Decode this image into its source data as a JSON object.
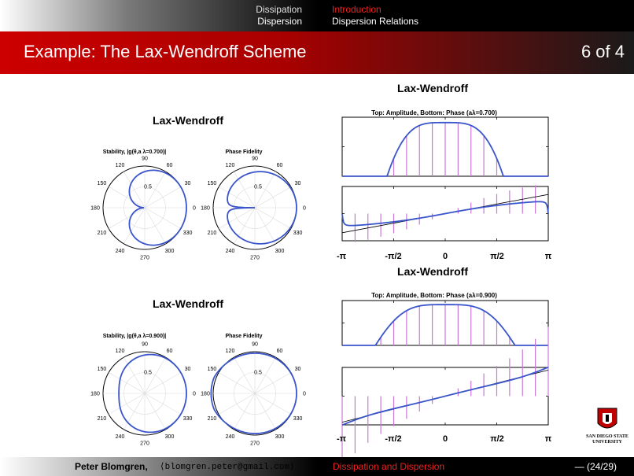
{
  "nav": {
    "section1": "Dissipation",
    "subsection1": "Dispersion",
    "section2": "Introduction",
    "subsection2": "Dispersion Relations"
  },
  "header": {
    "title": "Example: The Lax-Wendroff Scheme",
    "page": "6 of 4"
  },
  "figures": {
    "polar_title_1": "Lax-Wendroff",
    "polar_title_2": "Lax-Wendroff",
    "stability_1": "Stability, |g(θ,a λ=0.700)|",
    "stability_2": "Stability, |g(θ,a λ=0.900)|",
    "phase_label": "Phase Fidelity",
    "polar_ticks": {
      "r05": "0.5",
      "a0": "0",
      "a30": "30",
      "a60": "60",
      "a90": "90",
      "a120": "120",
      "a150": "150",
      "a180": "180",
      "a210": "210",
      "a240": "240",
      "a270": "270",
      "a300": "300",
      "a330": "330"
    },
    "amp_title_1": "Lax-Wendroff",
    "amp_title_2": "Lax-Wendroff",
    "amp_sub_1": "Top: Amplitude, Bottom: Phase (aλ=0.700)",
    "amp_sub_2": "Top: Amplitude, Bottom: Phase (aλ=0.900)",
    "xticks": [
      "-π",
      "-π/2",
      "0",
      "π/2",
      "π"
    ]
  },
  "chart_data": [
    {
      "type": "line",
      "chart": "polar",
      "title": "Stability, |g(θ,a λ=0.700)|",
      "courant": 0.7,
      "rlim": [
        0,
        1
      ]
    },
    {
      "type": "line",
      "chart": "polar",
      "title": "Phase Fidelity",
      "courant": 0.7,
      "rlim": [
        0,
        1
      ]
    },
    {
      "type": "line",
      "chart": "polar",
      "title": "Stability, |g(θ,a λ=0.900)|",
      "courant": 0.9,
      "rlim": [
        0,
        1
      ]
    },
    {
      "type": "line",
      "chart": "polar",
      "title": "Phase Fidelity",
      "courant": 0.9,
      "rlim": [
        0,
        1
      ]
    },
    {
      "type": "line",
      "title": "Top: Amplitude, Bottom: Phase (aλ=0.700)",
      "courant": 0.7,
      "xlim": [
        -3.1416,
        3.1416
      ],
      "amplitude_ylim": [
        0.8,
        1.02
      ],
      "phase_ylim": [
        -1.3,
        1.3
      ]
    },
    {
      "type": "line",
      "title": "Top: Amplitude, Bottom: Phase (aλ=0.900)",
      "courant": 0.9,
      "xlim": [
        -3.1416,
        3.1416
      ],
      "amplitude_ylim": [
        0.8,
        1.02
      ],
      "phase_ylim": [
        -1.3,
        1.3
      ]
    }
  ],
  "logo": {
    "line1": "San Diego State",
    "line2": "University"
  },
  "footer": {
    "author": "Peter Blomgren,",
    "email": "⟨blomgren.peter@gmail.com⟩",
    "talk": "Dissipation and Dispersion",
    "page": "— (24/29)"
  }
}
